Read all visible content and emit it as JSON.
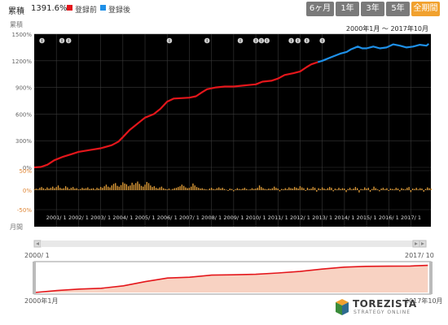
{
  "header": {
    "cumulative_label": "累積",
    "cumulative_value": "1391.6%",
    "legend_before": "登録前",
    "legend_after": "登録後",
    "color_before": "#e4161b",
    "color_after": "#1e90e8",
    "tabs": [
      {
        "label": "6ヶ月",
        "active": false
      },
      {
        "label": "1年",
        "active": false
      },
      {
        "label": "3年",
        "active": false
      },
      {
        "label": "5年",
        "active": false
      },
      {
        "label": "全期間",
        "active": true
      }
    ]
  },
  "chart": {
    "period_text": "2000年1月 〜 2017年10月",
    "y_axis_title": "累積",
    "bar_axis_title": "月間",
    "background": "#000000",
    "bar_color": "#e8a23a"
  },
  "navigator": {
    "range_start": "2000/ 1",
    "range_end": "2017/ 10",
    "bottom_start": "2000年1月",
    "bottom_end": "2017年10月",
    "line_color": "#e4161b",
    "fill_color": "#f8d2c2"
  },
  "logo": {
    "name": "TOREZISTA",
    "sub": "STRATEGY ONLINE"
  },
  "chart_data": [
    {
      "type": "line",
      "ylabel": "累積",
      "y_unit": "%",
      "ylim": [
        0,
        1500
      ],
      "yticks": [
        "0%",
        "300%",
        "600%",
        "900%",
        "1200%",
        "1500%"
      ],
      "xlim": [
        2000.0,
        2017.9
      ],
      "xticks": [
        "2001/ 1",
        "2002/ 1",
        "2003/ 1",
        "2004/ 1",
        "2005/ 1",
        "2006/ 1",
        "2007/ 1",
        "2008/ 1",
        "2009/ 1",
        "2010/ 1",
        "2011/ 1",
        "2012/ 1",
        "2013/ 1",
        "2014/ 1",
        "2015/ 1",
        "2016/ 1",
        "2017/ 1"
      ],
      "grid": true,
      "legend": "top-left",
      "series": [
        {
          "name": "登録前",
          "color": "#e4161b",
          "points": [
            [
              2000.0,
              0
            ],
            [
              2000.3,
              5
            ],
            [
              2000.6,
              30
            ],
            [
              2000.9,
              80
            ],
            [
              2001.3,
              120
            ],
            [
              2001.7,
              150
            ],
            [
              2002.0,
              175
            ],
            [
              2002.5,
              195
            ],
            [
              2003.0,
              215
            ],
            [
              2003.5,
              250
            ],
            [
              2003.8,
              290
            ],
            [
              2004.0,
              340
            ],
            [
              2004.3,
              420
            ],
            [
              2004.7,
              500
            ],
            [
              2005.0,
              560
            ],
            [
              2005.4,
              600
            ],
            [
              2005.7,
              660
            ],
            [
              2006.0,
              740
            ],
            [
              2006.3,
              775
            ],
            [
              2006.7,
              780
            ],
            [
              2007.0,
              785
            ],
            [
              2007.3,
              800
            ],
            [
              2007.6,
              850
            ],
            [
              2007.8,
              880
            ],
            [
              2008.2,
              900
            ],
            [
              2008.6,
              910
            ],
            [
              2009.0,
              910
            ],
            [
              2009.4,
              920
            ],
            [
              2009.8,
              930
            ],
            [
              2010.0,
              935
            ],
            [
              2010.3,
              965
            ],
            [
              2010.7,
              975
            ],
            [
              2011.0,
              1000
            ],
            [
              2011.3,
              1040
            ],
            [
              2011.7,
              1060
            ],
            [
              2012.0,
              1080
            ],
            [
              2012.3,
              1130
            ],
            [
              2012.5,
              1160
            ],
            [
              2012.8,
              1185
            ]
          ]
        },
        {
          "name": "登録後",
          "color": "#1e90e8",
          "points": [
            [
              2012.8,
              1185
            ],
            [
              2013.0,
              1200
            ],
            [
              2013.4,
              1240
            ],
            [
              2013.8,
              1280
            ],
            [
              2014.1,
              1300
            ],
            [
              2014.3,
              1330
            ],
            [
              2014.6,
              1360
            ],
            [
              2014.8,
              1340
            ],
            [
              2015.0,
              1340
            ],
            [
              2015.3,
              1360
            ],
            [
              2015.6,
              1340
            ],
            [
              2015.9,
              1350
            ],
            [
              2016.2,
              1385
            ],
            [
              2016.5,
              1370
            ],
            [
              2016.8,
              1350
            ],
            [
              2017.1,
              1360
            ],
            [
              2017.4,
              1380
            ],
            [
              2017.7,
              1370
            ],
            [
              2017.8,
              1391.6
            ]
          ]
        }
      ]
    },
    {
      "type": "bar",
      "ylabel": "月間",
      "ylim": [
        -50,
        50
      ],
      "yticks": [
        "50%",
        "0%",
        "-50%"
      ],
      "x_start": 2000.0,
      "x_step": 0.0833,
      "values": [
        2,
        4,
        3,
        6,
        8,
        5,
        3,
        7,
        4,
        6,
        9,
        5,
        8,
        12,
        6,
        4,
        5,
        10,
        7,
        3,
        6,
        8,
        4,
        5,
        2,
        3,
        6,
        4,
        5,
        7,
        3,
        4,
        5,
        2,
        6,
        4,
        8,
        6,
        10,
        14,
        9,
        7,
        12,
        16,
        18,
        11,
        9,
        13,
        20,
        17,
        15,
        10,
        12,
        19,
        14,
        18,
        22,
        16,
        11,
        9,
        14,
        21,
        18,
        12,
        8,
        10,
        6,
        4,
        7,
        9,
        5,
        3,
        2,
        4,
        1,
        3,
        5,
        6,
        8,
        10,
        14,
        11,
        7,
        5,
        6,
        9,
        17,
        12,
        8,
        6,
        4,
        5,
        3,
        2,
        1,
        4,
        6,
        3,
        2,
        5,
        7,
        4,
        6,
        3,
        1,
        -2,
        4,
        3,
        -3,
        2,
        5,
        3,
        2,
        4,
        6,
        3,
        1,
        2,
        5,
        3,
        4,
        6,
        12,
        8,
        5,
        3,
        2,
        4,
        3,
        5,
        9,
        6,
        4,
        -3,
        3,
        2,
        5,
        3,
        7,
        5,
        4,
        8,
        6,
        4,
        10,
        7,
        5,
        -2,
        6,
        3,
        4,
        8,
        6,
        -4,
        5,
        3,
        7,
        4,
        2,
        5,
        8,
        6,
        -3,
        4,
        2,
        6,
        3,
        5,
        4,
        -5,
        3,
        6,
        2,
        4,
        8,
        5,
        -6,
        3,
        2,
        7,
        4,
        6,
        -4,
        3,
        9,
        5,
        2,
        -3,
        4,
        6,
        3,
        5,
        -2,
        4,
        3,
        2,
        6,
        4,
        -3,
        5,
        3,
        2,
        6,
        8,
        -5,
        4,
        3,
        6,
        2,
        5,
        4,
        -4,
        3,
        7,
        5,
        4
      ]
    },
    {
      "type": "area",
      "role": "navigator",
      "xlim": [
        2000.0,
        2017.9
      ],
      "ylim": [
        0,
        1500
      ],
      "points": [
        [
          2000.0,
          0
        ],
        [
          2001.0,
          100
        ],
        [
          2002.0,
          175
        ],
        [
          2003.0,
          215
        ],
        [
          2004.0,
          340
        ],
        [
          2005.0,
          560
        ],
        [
          2006.0,
          740
        ],
        [
          2007.0,
          785
        ],
        [
          2008.0,
          890
        ],
        [
          2009.0,
          910
        ],
        [
          2010.0,
          935
        ],
        [
          2011.0,
          1000
        ],
        [
          2012.0,
          1080
        ],
        [
          2013.0,
          1200
        ],
        [
          2014.0,
          1300
        ],
        [
          2015.0,
          1340
        ],
        [
          2016.0,
          1350
        ],
        [
          2017.0,
          1360
        ],
        [
          2017.8,
          1391.6
        ]
      ]
    }
  ]
}
